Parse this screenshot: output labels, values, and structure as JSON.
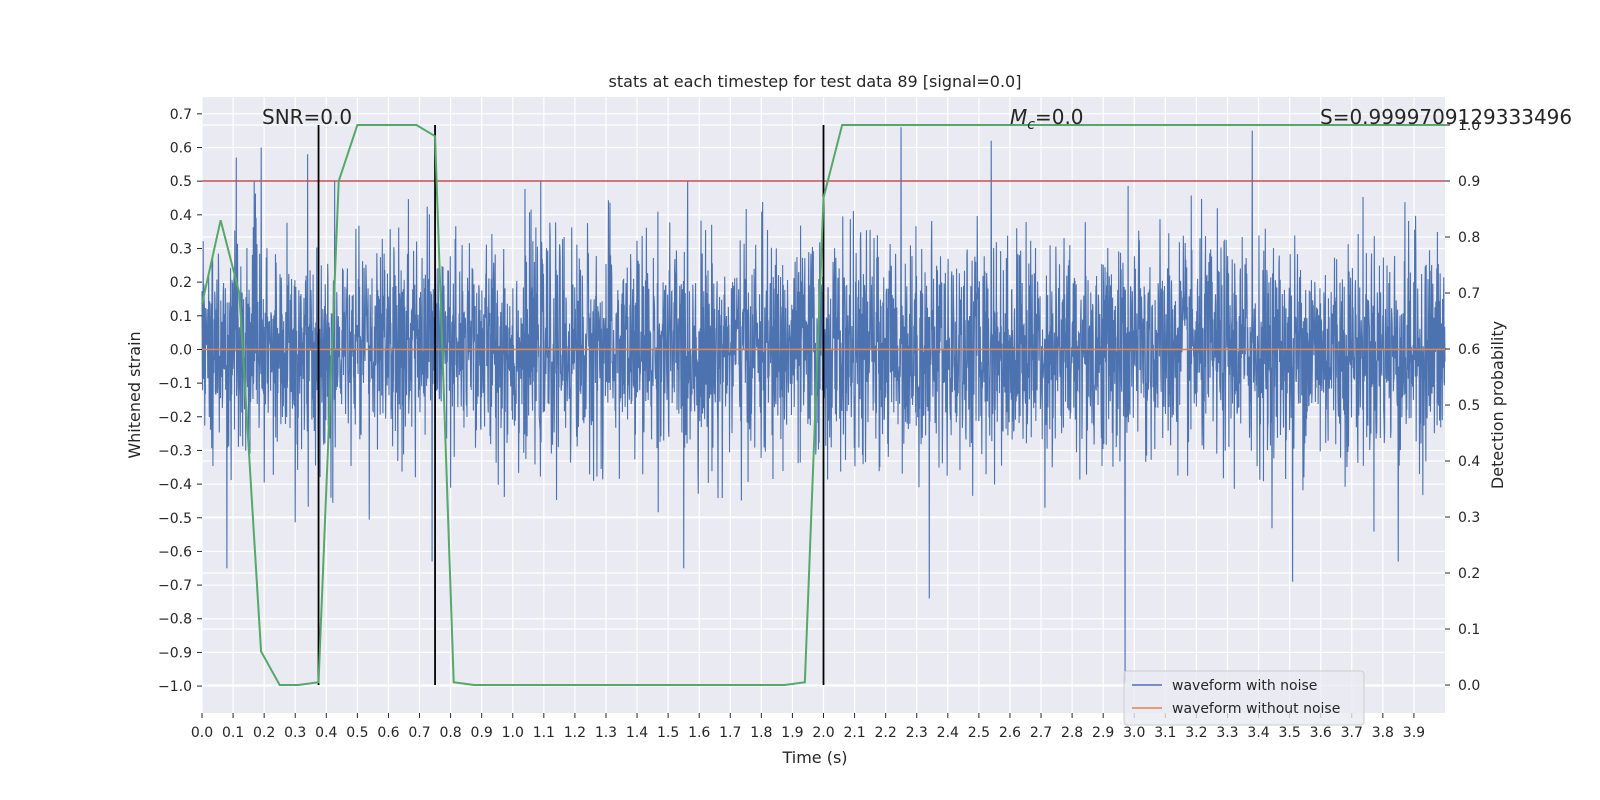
{
  "chart_data": {
    "type": "line",
    "title": "stats at each timestep for test data 89 [signal=0.0]",
    "xlabel": "Time (s)",
    "ylabel": "Whitened strain",
    "y2label": "Detection probability",
    "xlim": [
      0.0,
      4.0
    ],
    "ylim": [
      -1.08,
      0.75
    ],
    "y2lim": [
      -0.05,
      1.05
    ],
    "x_ticks": [
      "0.0",
      "0.1",
      "0.2",
      "0.3",
      "0.4",
      "0.5",
      "0.6",
      "0.7",
      "0.8",
      "0.9",
      "1.0",
      "1.1",
      "1.2",
      "1.3",
      "1.4",
      "1.5",
      "1.6",
      "1.7",
      "1.8",
      "1.9",
      "2.0",
      "2.1",
      "2.2",
      "2.3",
      "2.4",
      "2.5",
      "2.6",
      "2.7",
      "2.8",
      "2.9",
      "3.0",
      "3.1",
      "3.2",
      "3.3",
      "3.4",
      "3.5",
      "3.6",
      "3.7",
      "3.8",
      "3.9"
    ],
    "y_ticks": [
      "0.7",
      "0.6",
      "0.5",
      "0.4",
      "0.3",
      "0.2",
      "0.1",
      "0.0",
      "−0.1",
      "−0.2",
      "−0.3",
      "−0.4",
      "−0.5",
      "−0.6",
      "−0.7",
      "−0.8",
      "−0.9",
      "−1.0"
    ],
    "y2_ticks": [
      "1.0",
      "0.9",
      "0.8",
      "0.7",
      "0.6",
      "0.5",
      "0.4",
      "0.3",
      "0.2",
      "0.1",
      "0.0"
    ],
    "grid": true,
    "legend_position": "lower-right",
    "series": [
      {
        "name": "waveform with noise",
        "color": "#4c72b0",
        "axis": "left",
        "noise_sigma": 0.16,
        "spikes": [
          {
            "x": 0.11,
            "y": 0.57
          },
          {
            "x": 0.19,
            "y": 0.6
          },
          {
            "x": 0.34,
            "y": 0.58
          },
          {
            "x": 2.25,
            "y": 0.66
          },
          {
            "x": 2.54,
            "y": 0.62
          },
          {
            "x": 3.38,
            "y": 0.65
          },
          {
            "x": 0.08,
            "y": -0.65
          },
          {
            "x": 0.74,
            "y": -0.63
          },
          {
            "x": 1.55,
            "y": -0.65
          },
          {
            "x": 2.34,
            "y": -0.74
          },
          {
            "x": 2.97,
            "y": -0.99
          },
          {
            "x": 3.51,
            "y": -0.69
          },
          {
            "x": 3.85,
            "y": -0.63
          }
        ]
      },
      {
        "name": "waveform without noise",
        "color": "#dd8452",
        "axis": "left",
        "x": [
          0.0,
          4.0
        ],
        "y": [
          0.0,
          0.0
        ]
      },
      {
        "name": "detection probability",
        "color": "#55a868",
        "axis": "right",
        "x": [
          0.0,
          0.06,
          0.12,
          0.19,
          0.25,
          0.31,
          0.375,
          0.44,
          0.5,
          0.69,
          0.75,
          0.81,
          0.875,
          1.875,
          1.94,
          2.0,
          2.06,
          4.0
        ],
        "y": [
          0.68,
          0.83,
          0.7,
          0.06,
          0.0,
          0.0,
          0.005,
          0.9,
          1.0,
          1.0,
          0.98,
          0.005,
          0.0,
          0.0,
          0.005,
          0.87,
          1.0,
          1.0
        ]
      }
    ],
    "threshold": {
      "value": 0.9,
      "axis": "right",
      "color": "#c44e52"
    },
    "vlines": [
      0.375,
      0.75,
      2.0
    ],
    "annotations": {
      "snr": "SNR=0.0",
      "mc_symbol": "M",
      "mc_sub": "c",
      "mc_value": "=0.0",
      "s_value": "S=0.9999709129333496"
    },
    "colors": {
      "plot_bg": "#eaeaf2",
      "grid": "#ffffff",
      "vline": "#000000"
    }
  }
}
